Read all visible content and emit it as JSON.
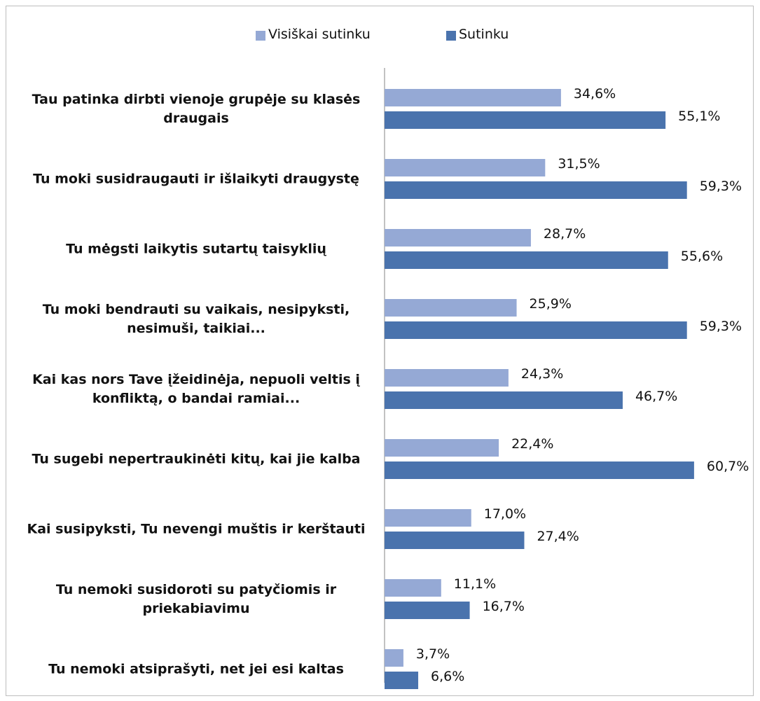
{
  "chart_data": {
    "type": "bar",
    "orientation": "horizontal",
    "categories": [
      "Tau patinka dirbti vienoje grupėje su klasės draugais",
      "Tu moki susidraugauti ir išlaikyti draugystę",
      "Tu mėgsti laikytis sutartų taisyklių",
      "Tu moki bendrauti su vaikais, nesipyksti, nesimuši, taikiai...",
      "Kai kas nors Tave įžeidinėja, nepuoli veltis į konfliktą, o bandai ramiai...",
      "Tu sugebi nepertraukinėti kitų, kai jie kalba",
      "Kai susipyksti, Tu nevengi muštis ir kerštauti",
      "Tu nemoki susidoroti su patyčiomis ir priekabiavimu",
      "Tu nemoki atsiprašyti, net jei esi kaltas"
    ],
    "series": [
      {
        "name": "Visiškai sutinku",
        "color": "#95a9d5",
        "values": [
          34.6,
          31.5,
          28.7,
          25.9,
          24.3,
          22.4,
          17.0,
          11.1,
          3.7
        ],
        "value_labels": [
          "34,6%",
          "31,5%",
          "28,7%",
          "25,9%",
          "24,3%",
          "22,4%",
          "17,0%",
          "11,1%",
          "3,7%"
        ]
      },
      {
        "name": "Sutinku",
        "color": "#4a73ad",
        "values": [
          55.1,
          59.3,
          55.6,
          59.3,
          46.7,
          60.7,
          27.4,
          16.7,
          6.6
        ],
        "value_labels": [
          "55,1%",
          "59,3%",
          "55,6%",
          "59,3%",
          "46,7%",
          "60,7%",
          "27,4%",
          "16,7%",
          "6,6%"
        ]
      }
    ],
    "legend": "top"
  }
}
